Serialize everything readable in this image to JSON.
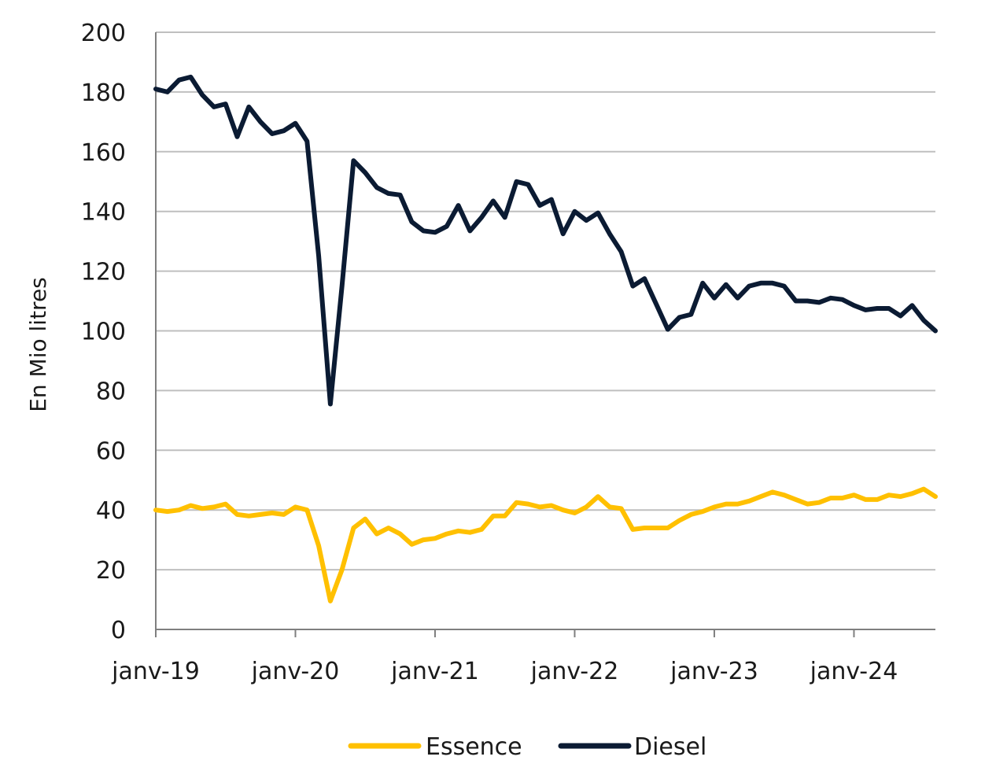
{
  "chart_data": {
    "type": "line",
    "ylabel": "En Mio litres",
    "ylim": [
      0,
      200
    ],
    "yticks": [
      0,
      20,
      40,
      60,
      80,
      100,
      120,
      140,
      160,
      180,
      200
    ],
    "xtick_labels": [
      "janv-19",
      "janv-20",
      "janv-21",
      "janv-22",
      "janv-23",
      "janv-24"
    ],
    "x_range": [
      "2019-01",
      "2024-08"
    ],
    "grid": "horizontal",
    "legend_position": "bottom",
    "x": [
      "2019-01",
      "2019-02",
      "2019-03",
      "2019-04",
      "2019-05",
      "2019-06",
      "2019-07",
      "2019-08",
      "2019-09",
      "2019-10",
      "2019-11",
      "2019-12",
      "2020-01",
      "2020-02",
      "2020-03",
      "2020-04",
      "2020-05",
      "2020-06",
      "2020-07",
      "2020-08",
      "2020-09",
      "2020-10",
      "2020-11",
      "2020-12",
      "2021-01",
      "2021-02",
      "2021-03",
      "2021-04",
      "2021-05",
      "2021-06",
      "2021-07",
      "2021-08",
      "2021-09",
      "2021-10",
      "2021-11",
      "2021-12",
      "2022-01",
      "2022-02",
      "2022-03",
      "2022-04",
      "2022-05",
      "2022-06",
      "2022-07",
      "2022-08",
      "2022-09",
      "2022-10",
      "2022-11",
      "2022-12",
      "2023-01",
      "2023-02",
      "2023-03",
      "2023-04",
      "2023-05",
      "2023-06",
      "2023-07",
      "2023-08",
      "2023-09",
      "2023-10",
      "2023-11",
      "2023-12",
      "2024-01",
      "2024-02",
      "2024-03",
      "2024-04",
      "2024-05",
      "2024-06",
      "2024-07",
      "2024-08"
    ],
    "series": [
      {
        "name": "Essence",
        "color": "#FFC000",
        "values": [
          40,
          39.5,
          40,
          41.5,
          40.5,
          41,
          42,
          38.5,
          38,
          38.5,
          39,
          38.5,
          41,
          40,
          28,
          9.5,
          20,
          34,
          37,
          32,
          34,
          32,
          28.5,
          30,
          30.5,
          32,
          33,
          32.5,
          33.5,
          38,
          38,
          42.5,
          42,
          41,
          41.5,
          40,
          39,
          41,
          44.5,
          41,
          40.5,
          33.5,
          34,
          34,
          34,
          36.5,
          38.5,
          39.5,
          41,
          42,
          42,
          43,
          44.5,
          46,
          45,
          43.5,
          42,
          42.5,
          44,
          44,
          45,
          43.5,
          43.5,
          45,
          44.5,
          45.5,
          47,
          44.5
        ]
      },
      {
        "name": "Diesel",
        "color": "#0B1B33",
        "values": [
          181,
          180,
          184,
          185,
          179,
          175,
          176,
          165,
          175,
          170,
          166,
          167,
          169.5,
          163.5,
          125,
          75.5,
          115,
          157,
          153,
          148,
          146,
          145.5,
          136.5,
          133.5,
          133,
          135,
          142,
          133.5,
          138,
          143.5,
          138,
          150,
          149,
          142,
          144,
          132.5,
          140,
          137,
          139.5,
          132.5,
          126.5,
          115,
          117.5,
          109,
          100.5,
          104.5,
          105.5,
          116,
          111,
          115.5,
          111,
          115,
          116,
          116,
          115,
          110,
          110,
          109.5,
          111,
          110.5,
          108.5,
          107,
          107.5,
          107.5,
          105,
          108.5,
          103.5,
          100
        ]
      }
    ]
  }
}
